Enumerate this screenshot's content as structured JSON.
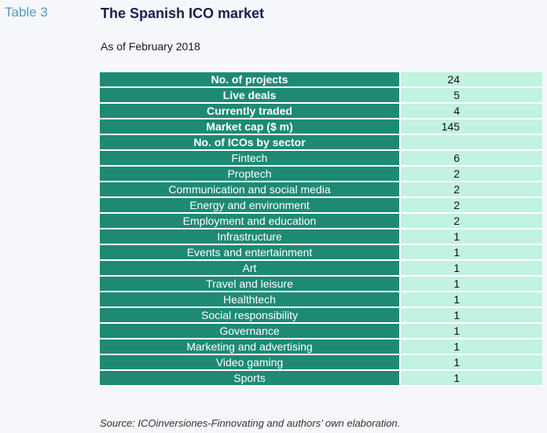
{
  "table_label": "Table 3",
  "title": "The Spanish ICO market",
  "subtitle": "As of February 2018",
  "rows": [
    {
      "label": "No. of projects",
      "value": "24",
      "bold": true
    },
    {
      "label": "Live deals",
      "value": "5",
      "bold": true
    },
    {
      "label": "Currently traded",
      "value": "4",
      "bold": true
    },
    {
      "label": "Market cap ($ m)",
      "value": "145",
      "bold": true
    },
    {
      "label": "No. of ICOs by sector",
      "value": "",
      "bold": true
    },
    {
      "label": "Fintech",
      "value": "6",
      "bold": false
    },
    {
      "label": "Proptech",
      "value": "2",
      "bold": false
    },
    {
      "label": "Communication and social media",
      "value": "2",
      "bold": false
    },
    {
      "label": "Energy and environment",
      "value": "2",
      "bold": false
    },
    {
      "label": "Employment and education",
      "value": "2",
      "bold": false
    },
    {
      "label": "Infrastructure",
      "value": "1",
      "bold": false
    },
    {
      "label": "Events and entertainment",
      "value": "1",
      "bold": false
    },
    {
      "label": "Art",
      "value": "1",
      "bold": false
    },
    {
      "label": "Travel and leisure",
      "value": "1",
      "bold": false
    },
    {
      "label": "Healthtech",
      "value": "1",
      "bold": false
    },
    {
      "label": "Social responsibility",
      "value": "1",
      "bold": false
    },
    {
      "label": "Governance",
      "value": "1",
      "bold": false
    },
    {
      "label": "Marketing and advertising",
      "value": "1",
      "bold": false
    },
    {
      "label": "Video gaming",
      "value": "1",
      "bold": false
    },
    {
      "label": "Sports",
      "value": "1",
      "bold": false
    }
  ],
  "source": "Source: ICOinversiones-Finnovating and authors’ own elaboration.",
  "colors": {
    "label_bg": "#1e8a74",
    "value_bg": "#c2f2e0",
    "title": "#1a1f4e",
    "table_label": "#5a9ab8"
  }
}
